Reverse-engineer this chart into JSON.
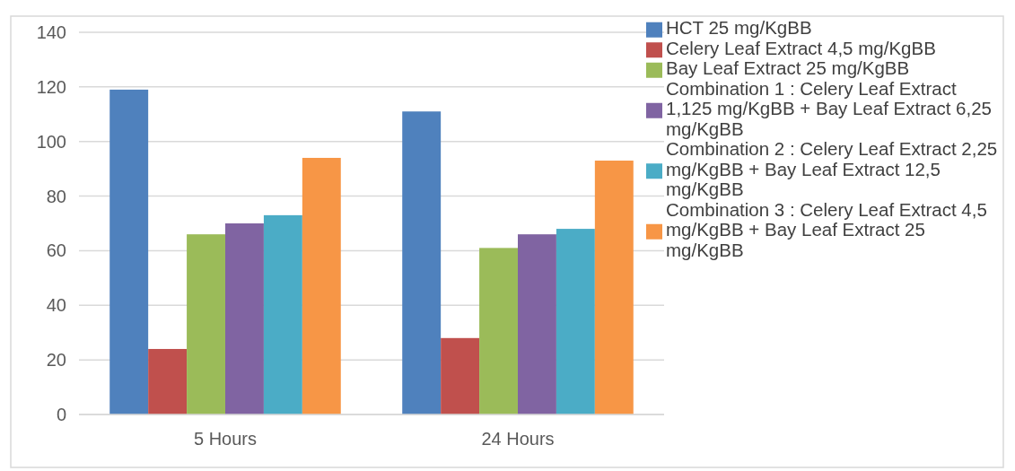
{
  "chart_data": {
    "type": "bar",
    "categories": [
      "5 Hours",
      "24 Hours"
    ],
    "series": [
      {
        "name": "HCT 25 mg/KgBB",
        "color": "#4f81bd",
        "values": [
          119,
          111
        ]
      },
      {
        "name": "Celery Leaf Extract 4,5 mg/KgBB",
        "color": "#c0504d",
        "values": [
          24,
          28
        ]
      },
      {
        "name": "Bay Leaf Extract 25 mg/KgBB",
        "color": "#9bbb59",
        "values": [
          66,
          61
        ]
      },
      {
        "name": "Combination 1 : Celery Leaf Extract 1,125 mg/KgBB + Bay Leaf Extract 6,25 mg/KgBB",
        "color": "#8064a2",
        "values": [
          70,
          66
        ]
      },
      {
        "name": "Combination 2 : Celery Leaf Extract 2,25 mg/KgBB + Bay Leaf Extract 12,5 mg/KgBB",
        "color": "#4bacc6",
        "values": [
          73,
          68
        ]
      },
      {
        "name": "Combination 3 : Celery Leaf Extract 4,5 mg/KgBB + Bay Leaf Extract 25 mg/KgBB",
        "color": "#f79646",
        "values": [
          94,
          93
        ]
      }
    ],
    "ylim": [
      0,
      140
    ],
    "yticks": [
      0,
      20,
      40,
      60,
      80,
      100,
      120,
      140
    ],
    "grid": "y",
    "legend": "right"
  }
}
